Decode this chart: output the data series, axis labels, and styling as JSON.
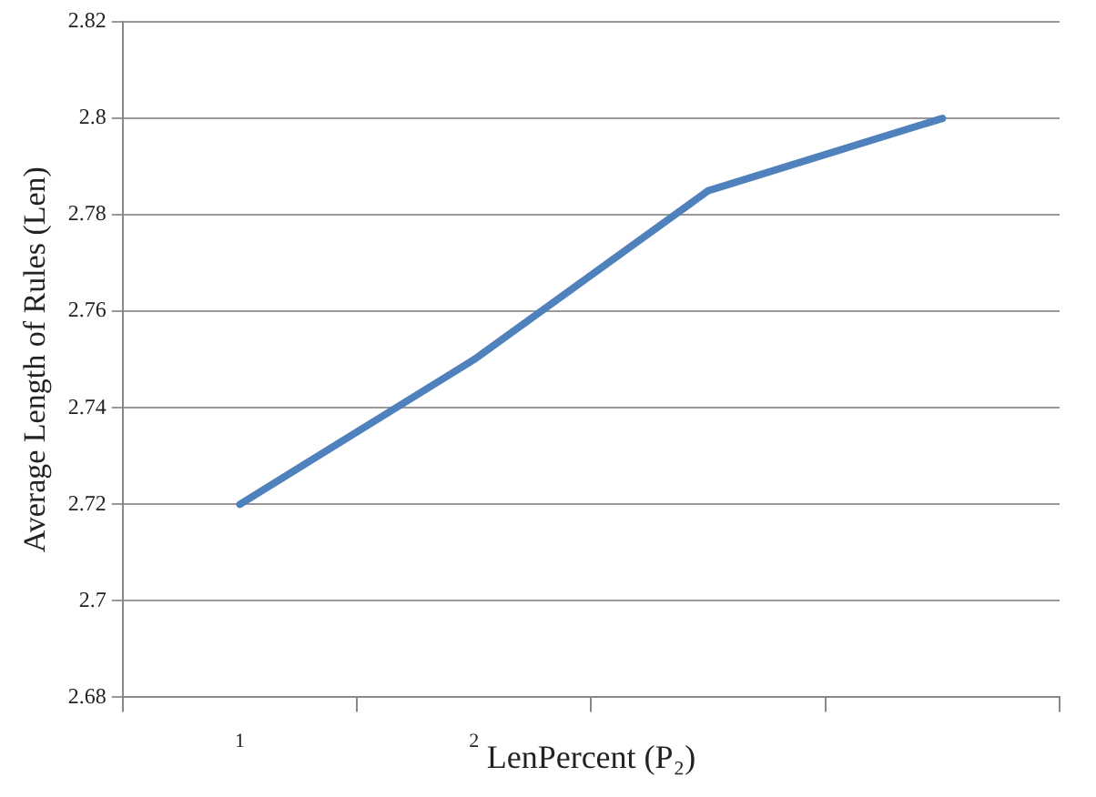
{
  "chart_data": {
    "type": "line",
    "xlabel": "LenPercent (P₂)",
    "ylabel": "Average Length of Rules (Len)",
    "categories": [
      "1",
      "2",
      null,
      null
    ],
    "series": [
      {
        "color": "#4f81bd",
        "values": [
          2.72,
          2.75,
          2.785,
          2.8
        ]
      }
    ],
    "ylim": [
      2.68,
      2.82
    ],
    "yticks": [
      2.68,
      2.7,
      2.72,
      2.74,
      2.76,
      2.78,
      2.8,
      2.82
    ],
    "grid": "y",
    "marker": "none",
    "line_style": "solid",
    "legend": false
  }
}
